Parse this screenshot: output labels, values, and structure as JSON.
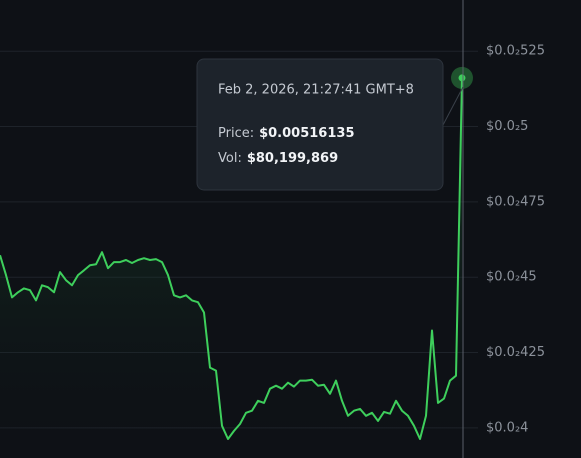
{
  "chart_data": {
    "type": "line",
    "values": [
      0.004573,
      0.004507,
      0.004433,
      0.00445,
      0.004463,
      0.004457,
      0.004423,
      0.004473,
      0.004467,
      0.00445,
      0.004517,
      0.00449,
      0.004473,
      0.004507,
      0.004523,
      0.00454,
      0.004543,
      0.004583,
      0.00453,
      0.00455,
      0.00455,
      0.004557,
      0.004547,
      0.004557,
      0.004563,
      0.004557,
      0.00456,
      0.00455,
      0.004507,
      0.00444,
      0.004433,
      0.00444,
      0.004423,
      0.004417,
      0.004383,
      0.0042,
      0.00419,
      0.004007,
      0.003963,
      0.00399,
      0.004013,
      0.00405,
      0.004057,
      0.00409,
      0.004083,
      0.00413,
      0.00414,
      0.00413,
      0.00415,
      0.004137,
      0.004157,
      0.004157,
      0.00416,
      0.00414,
      0.004143,
      0.004113,
      0.004157,
      0.00409,
      0.00404,
      0.004057,
      0.004063,
      0.00404,
      0.00405,
      0.004023,
      0.004053,
      0.004047,
      0.00409,
      0.004057,
      0.00404,
      0.004007,
      0.003963,
      0.00404,
      0.004323,
      0.004083,
      0.004097,
      0.004157,
      0.004173,
      0.00516135
    ],
    "color": "#3ecf5c",
    "ylim": [
      0.0039,
      0.00542
    ],
    "yticks": [
      {
        "value": 0.004,
        "label": "$0.0₂4"
      },
      {
        "value": 0.00425,
        "label": "$0.0₂425"
      },
      {
        "value": 0.0045,
        "label": "$0.0₂45"
      },
      {
        "value": 0.00475,
        "label": "$0.0₂475"
      },
      {
        "value": 0.005,
        "label": "$0.0₂5"
      },
      {
        "value": 0.00525,
        "label": "$0.0₂525"
      }
    ],
    "grid": true,
    "tooltip": {
      "time": "Feb 2, 2026, 21:27:41 GMT+8",
      "price_label": "Price:",
      "price": "$0.00516135",
      "vol_label": "Vol:",
      "vol": "$80,199,869"
    }
  }
}
